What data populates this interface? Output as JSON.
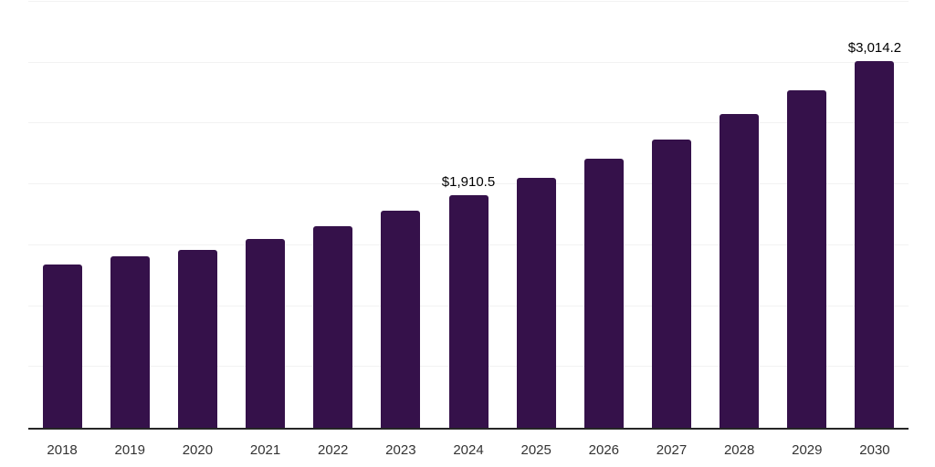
{
  "chart_data": {
    "type": "bar",
    "title": "",
    "xlabel": "",
    "ylabel": "",
    "categories": [
      "2018",
      "2019",
      "2020",
      "2021",
      "2022",
      "2023",
      "2024",
      "2025",
      "2026",
      "2027",
      "2028",
      "2029",
      "2030"
    ],
    "values": [
      1345,
      1410,
      1460,
      1555,
      1660,
      1785,
      1910.5,
      2050,
      2210,
      2370,
      2575,
      2775,
      3014.2
    ],
    "data_labels": [
      "",
      "",
      "",
      "",
      "",
      "",
      "$1,910.5",
      "",
      "",
      "",
      "",
      "",
      "$3,014.2"
    ],
    "ylim": [
      0,
      3500
    ],
    "gridline_step": 500,
    "grid": true,
    "legend": false,
    "y_axis_tick_labels_visible": false,
    "colors": {
      "bar": "#35114A",
      "gridline": "#f2f2f2",
      "axis_line": "#262626",
      "tick_label": "#333333",
      "data_label": "#000000",
      "background": "#ffffff"
    }
  }
}
